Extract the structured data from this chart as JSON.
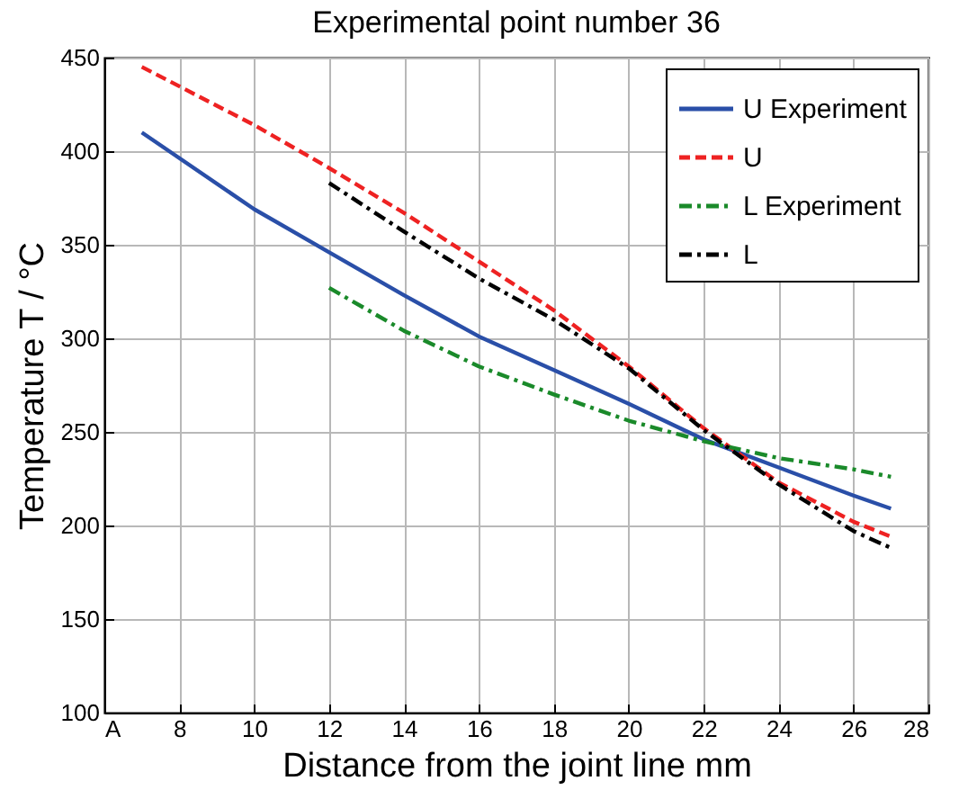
{
  "chart_data": {
    "type": "line",
    "title": "Experimental point number 36",
    "xlabel": "Distance from the joint line mm",
    "ylabel": "Temperature T / °C",
    "xlim": [
      6,
      28
    ],
    "xticks": [
      {
        "value": 6,
        "label": "A"
      },
      8,
      10,
      12,
      14,
      16,
      18,
      20,
      22,
      24,
      26,
      28
    ],
    "ylim": [
      100,
      450
    ],
    "yticks": [
      100,
      150,
      200,
      250,
      300,
      350,
      400,
      450
    ],
    "grid": true,
    "legend": "top right",
    "marker": "none",
    "series": [
      {
        "name": "U Experiment",
        "color": "#2a4fa8",
        "line_style": "solid",
        "x": [
          7,
          10,
          12,
          14,
          16,
          18,
          20,
          22,
          24,
          26,
          27
        ],
        "values": [
          410,
          369,
          346,
          323,
          301,
          283,
          265,
          246,
          231,
          216,
          209
        ]
      },
      {
        "name": "U",
        "color": "#ee2222",
        "line_style": "dashed",
        "x": [
          7,
          10,
          12,
          14,
          16,
          18,
          20,
          22,
          24,
          26,
          27
        ],
        "values": [
          445,
          414,
          391,
          367,
          341,
          315,
          285,
          252,
          223,
          202,
          194
        ]
      },
      {
        "name": "L Experiment",
        "color": "#1a8a2a",
        "line_style": "dashdot",
        "x": [
          12,
          14,
          16,
          18,
          20,
          22,
          24,
          26,
          27
        ],
        "values": [
          327,
          304,
          285,
          270,
          256,
          245,
          236,
          230,
          226
        ]
      },
      {
        "name": "L",
        "color": "#000000",
        "line_style": "dashdot",
        "x": [
          12,
          14,
          16,
          18,
          20,
          22,
          24,
          26,
          27
        ],
        "values": [
          383,
          357,
          332,
          310,
          284,
          251,
          222,
          197,
          188
        ]
      }
    ]
  }
}
